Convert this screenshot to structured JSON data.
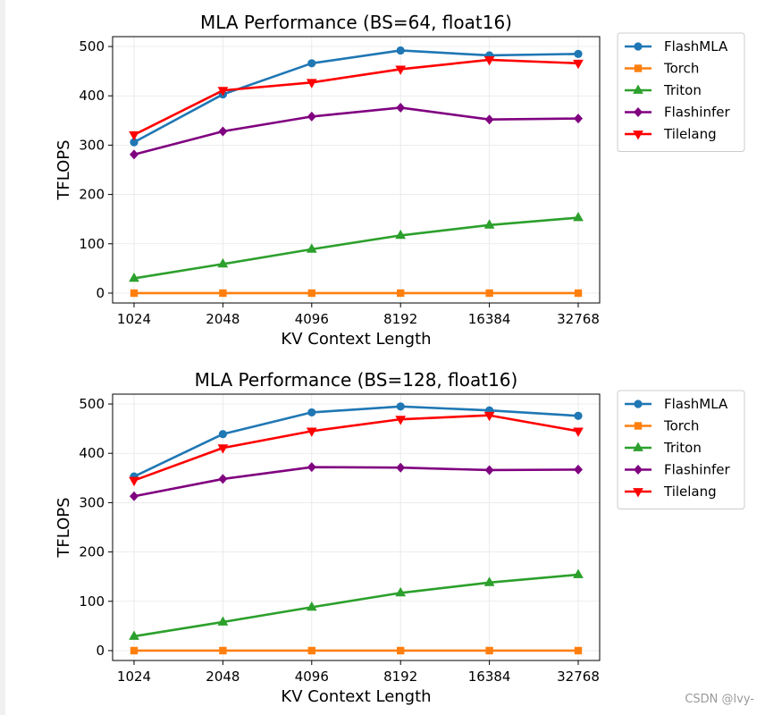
{
  "watermark": "CSDN @lvy-",
  "colors": {
    "FlashMLA": "#1f77b4",
    "Torch": "#ff7f0e",
    "Triton": "#2ca02c",
    "Flashinfer": "#800080",
    "Tilelang": "#ff0000"
  },
  "chart_data": [
    {
      "type": "line",
      "title": "MLA Performance (BS=64, float16)",
      "xlabel": "KV Context Length",
      "ylabel": "TFLOPS",
      "categories": [
        "1024",
        "2048",
        "4096",
        "8192",
        "16384",
        "32768"
      ],
      "ylim": [
        -20,
        520
      ],
      "yticks": [
        0,
        100,
        200,
        300,
        400,
        500
      ],
      "grid": true,
      "legend": "outside-top-right",
      "series": [
        {
          "name": "FlashMLA",
          "marker": "circle",
          "values": [
            306,
            403,
            466,
            492,
            482,
            485
          ]
        },
        {
          "name": "Torch",
          "marker": "square",
          "values": [
            0,
            0,
            0,
            0,
            0,
            0
          ]
        },
        {
          "name": "Triton",
          "marker": "triangle-up",
          "values": [
            30,
            59,
            89,
            117,
            138,
            153
          ]
        },
        {
          "name": "Flashinfer",
          "marker": "diamond",
          "values": [
            281,
            328,
            358,
            376,
            352,
            354
          ]
        },
        {
          "name": "Tilelang",
          "marker": "triangle-down",
          "values": [
            321,
            411,
            427,
            454,
            473,
            466
          ]
        }
      ]
    },
    {
      "type": "line",
      "title": "MLA Performance (BS=128, float16)",
      "xlabel": "KV Context Length",
      "ylabel": "TFLOPS",
      "categories": [
        "1024",
        "2048",
        "4096",
        "8192",
        "16384",
        "32768"
      ],
      "ylim": [
        -20,
        520
      ],
      "yticks": [
        0,
        100,
        200,
        300,
        400,
        500
      ],
      "grid": true,
      "legend": "outside-top-right",
      "series": [
        {
          "name": "FlashMLA",
          "marker": "circle",
          "values": [
            353,
            439,
            483,
            495,
            487,
            476
          ]
        },
        {
          "name": "Torch",
          "marker": "square",
          "values": [
            0,
            0,
            0,
            0,
            0,
            0
          ]
        },
        {
          "name": "Triton",
          "marker": "triangle-up",
          "values": [
            29,
            58,
            88,
            117,
            138,
            154
          ]
        },
        {
          "name": "Flashinfer",
          "marker": "diamond",
          "values": [
            313,
            348,
            372,
            371,
            366,
            367
          ]
        },
        {
          "name": "Tilelang",
          "marker": "triangle-down",
          "values": [
            345,
            411,
            445,
            469,
            477,
            445
          ]
        }
      ]
    }
  ]
}
